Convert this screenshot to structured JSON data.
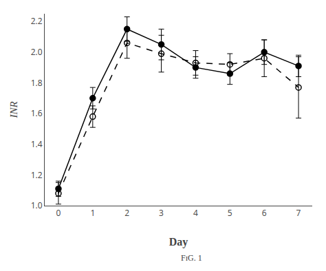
{
  "chart_data": {
    "type": "line",
    "xlabel": "Day",
    "ylabel": "INR",
    "annotations": [
      "FɪG. 1"
    ],
    "x": [
      0,
      1,
      2,
      3,
      4,
      5,
      6,
      7
    ],
    "series": [
      {
        "color": "#000000",
        "marker": "filled_circle",
        "line_style": "solid",
        "values": [
          1.11,
          1.7,
          2.15,
          2.05,
          1.9,
          1.86,
          2.0,
          1.91
        ],
        "yerr": [
          0.05,
          0.07,
          0.08,
          0.1,
          0.07,
          0.07,
          0.08,
          0.07
        ]
      },
      {
        "color": "#000000",
        "marker": "open_circle",
        "line_style": "dashed",
        "values": [
          1.08,
          1.58,
          2.06,
          1.99,
          1.93,
          1.92,
          1.96,
          1.77
        ],
        "yerr": [
          0.07,
          0.07,
          0.1,
          0.12,
          0.08,
          0.07,
          0.12,
          0.2
        ]
      }
    ],
    "xlim": [
      -0.4,
      7.4
    ],
    "xticks": [
      0,
      1,
      2,
      3,
      4,
      5,
      6,
      7
    ],
    "ylim": [
      1.0,
      2.25
    ],
    "yticks": [
      {
        "value": 1.0,
        "label": "1.0"
      },
      1.2,
      1.4,
      1.6,
      1.8,
      {
        "value": 2.0,
        "label": "2.0"
      },
      2.2
    ],
    "grid": false
  }
}
